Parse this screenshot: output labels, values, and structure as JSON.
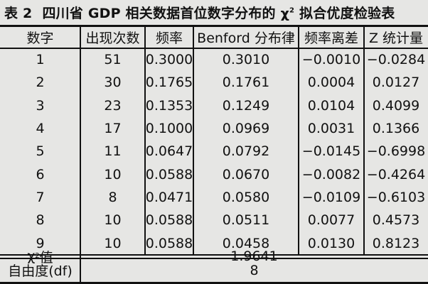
{
  "caption": {
    "number": "表 2",
    "title_before": "四川省 GDP 相关数据首位数字分布的 χ",
    "title_sup": "2",
    "title_after": " 拟合优度检验表"
  },
  "headers": [
    "数字",
    "出现次数",
    "频率",
    "Benford 分布律",
    "频率离差",
    "Z 统计量"
  ],
  "rows": [
    {
      "digit": "1",
      "count": "51",
      "freq": "0.3000",
      "benford": "0.3010",
      "dev": "−0.0010",
      "z": "−0.0284"
    },
    {
      "digit": "2",
      "count": "30",
      "freq": "0.1765",
      "benford": "0.1761",
      "dev": "0.0004",
      "z": "0.0127"
    },
    {
      "digit": "3",
      "count": "23",
      "freq": "0.1353",
      "benford": "0.1249",
      "dev": "0.0104",
      "z": "0.4099"
    },
    {
      "digit": "4",
      "count": "17",
      "freq": "0.1000",
      "benford": "0.0969",
      "dev": "0.0031",
      "z": "0.1366"
    },
    {
      "digit": "5",
      "count": "11",
      "freq": "0.0647",
      "benford": "0.0792",
      "dev": "−0.0145",
      "z": "−0.6998"
    },
    {
      "digit": "6",
      "count": "10",
      "freq": "0.0588",
      "benford": "0.0670",
      "dev": "−0.0082",
      "z": "−0.4264"
    },
    {
      "digit": "7",
      "count": "8",
      "freq": "0.0471",
      "benford": "0.0580",
      "dev": "−0.0109",
      "z": "−0.6103"
    },
    {
      "digit": "8",
      "count": "10",
      "freq": "0.0588",
      "benford": "0.0511",
      "dev": "0.0077",
      "z": "0.4573"
    },
    {
      "digit": "9",
      "count": "10",
      "freq": "0.0588",
      "benford": "0.0458",
      "dev": "0.0130",
      "z": "0.8123"
    }
  ],
  "summary": {
    "chi_label_base": "χ",
    "chi_label_sup": "2",
    "chi_label_suffix": " 值",
    "chi_value": "1.9641",
    "df_label": "自由度(df)",
    "df_value": "8"
  }
}
